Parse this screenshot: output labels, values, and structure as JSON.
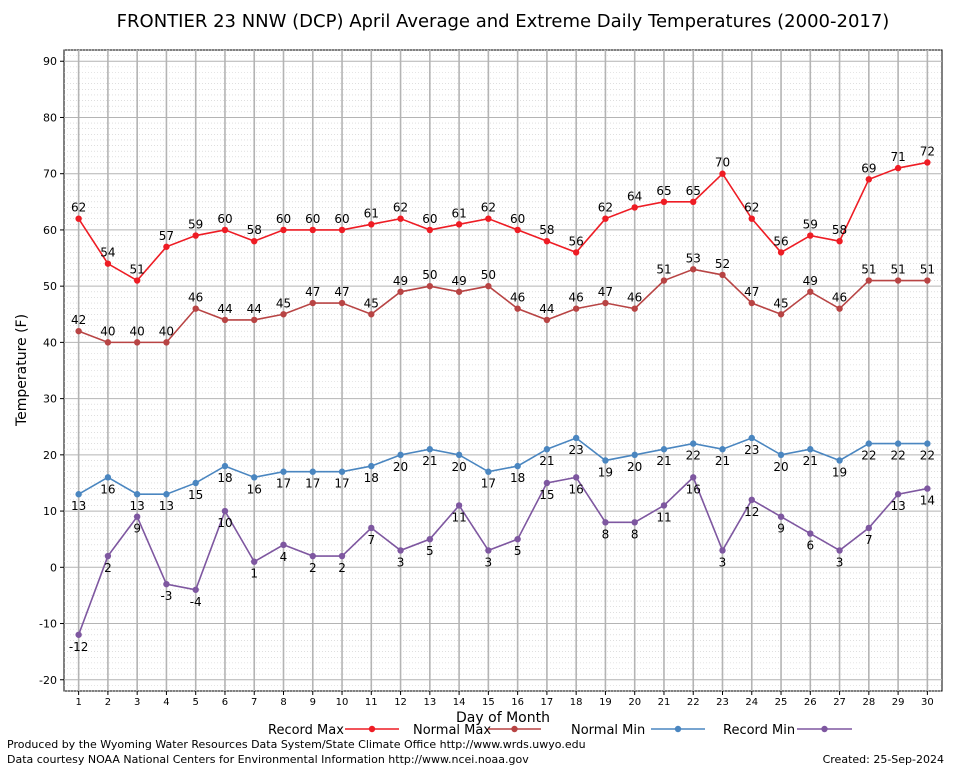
{
  "chart_data": {
    "type": "line",
    "title": "FRONTIER 23 NNW (DCP) April Average and Extreme Daily Temperatures (2000-2017)",
    "xlabel": "Day of Month",
    "ylabel": "Temperature (F)",
    "ylim": [
      -22,
      92
    ],
    "yticks": [
      -20,
      -10,
      0,
      10,
      20,
      30,
      40,
      50,
      60,
      70,
      80,
      90
    ],
    "x": [
      1,
      2,
      3,
      4,
      5,
      6,
      7,
      8,
      9,
      10,
      11,
      12,
      13,
      14,
      15,
      16,
      17,
      18,
      19,
      20,
      21,
      22,
      23,
      24,
      25,
      26,
      27,
      28,
      29,
      30
    ],
    "grid": true,
    "legend_position": "bottom",
    "series": [
      {
        "name": "Record Max",
        "color": "#ee1c24",
        "label_pos": "above",
        "values": [
          62,
          54,
          51,
          57,
          59,
          60,
          58,
          60,
          60,
          60,
          61,
          62,
          60,
          61,
          62,
          60,
          58,
          56,
          62,
          64,
          65,
          65,
          70,
          62,
          56,
          59,
          58,
          69,
          71,
          72
        ]
      },
      {
        "name": "Normal Max",
        "color": "#b84444",
        "label_pos": "above",
        "values": [
          42,
          40,
          40,
          40,
          46,
          44,
          44,
          45,
          47,
          47,
          45,
          49,
          50,
          49,
          50,
          46,
          44,
          46,
          47,
          46,
          51,
          53,
          52,
          47,
          45,
          49,
          46,
          51,
          51,
          51
        ]
      },
      {
        "name": "Normal Min",
        "color": "#4a86c0",
        "label_pos": "below",
        "values": [
          13,
          16,
          13,
          13,
          15,
          18,
          16,
          17,
          17,
          17,
          18,
          20,
          21,
          20,
          17,
          18,
          21,
          23,
          19,
          20,
          21,
          22,
          21,
          23,
          20,
          21,
          19,
          22,
          22,
          22
        ]
      },
      {
        "name": "Record Min",
        "color": "#7e57a0",
        "label_pos": "below",
        "values": [
          -12,
          2,
          9,
          -3,
          -4,
          10,
          1,
          4,
          2,
          2,
          7,
          3,
          5,
          11,
          3,
          5,
          15,
          16,
          8,
          8,
          11,
          16,
          3,
          12,
          9,
          6,
          3,
          7,
          13,
          14
        ]
      }
    ]
  },
  "footer": {
    "produced_by": "Produced by the Wyoming Water Resources Data System/State Climate Office http://www.wrds.uwyo.edu",
    "courtesy": "Data courtesy NOAA National Centers for Environmental Information http://www.ncei.noaa.gov",
    "created": "Created:  25-Sep-2024"
  }
}
